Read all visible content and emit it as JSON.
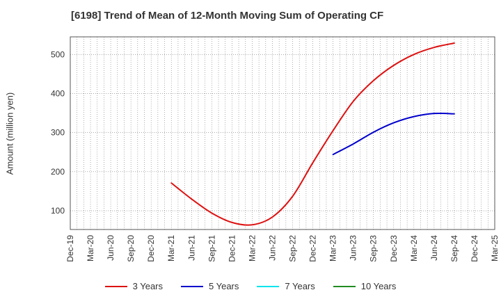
{
  "chart_data": {
    "type": "line",
    "title": "[6198]  Trend of Mean of 12-Month Moving Sum of Operating CF",
    "xlabel": "",
    "ylabel": "Amount (million yen)",
    "ylim": [
      52,
      545
    ],
    "yticks": [
      100,
      200,
      300,
      400,
      500
    ],
    "categories": [
      "Dec-19",
      "Mar-20",
      "Jun-20",
      "Sep-20",
      "Dec-20",
      "Mar-21",
      "Jun-21",
      "Sep-21",
      "Dec-21",
      "Mar-22",
      "Jun-22",
      "Sep-22",
      "Dec-22",
      "Mar-23",
      "Jun-23",
      "Sep-23",
      "Dec-23",
      "Mar-24",
      "Jun-24",
      "Sep-24",
      "Dec-24",
      "Mar-25"
    ],
    "grid": true,
    "legend_position": "bottom",
    "series": [
      {
        "name": "3 Years",
        "color": "#dd1111",
        "points": [
          {
            "x": "Mar-21",
            "y": 171
          },
          {
            "x": "Jun-21",
            "y": 130
          },
          {
            "x": "Sep-21",
            "y": 94
          },
          {
            "x": "Dec-21",
            "y": 70
          },
          {
            "x": "Mar-22",
            "y": 64
          },
          {
            "x": "Jun-22",
            "y": 84
          },
          {
            "x": "Sep-22",
            "y": 137
          },
          {
            "x": "Dec-22",
            "y": 223
          },
          {
            "x": "Mar-23",
            "y": 305
          },
          {
            "x": "Jun-23",
            "y": 380
          },
          {
            "x": "Sep-23",
            "y": 433
          },
          {
            "x": "Dec-23",
            "y": 472
          },
          {
            "x": "Mar-24",
            "y": 500
          },
          {
            "x": "Jun-24",
            "y": 518
          },
          {
            "x": "Sep-24",
            "y": 529
          }
        ]
      },
      {
        "name": "5 Years",
        "color": "#0000cc",
        "points": [
          {
            "x": "Mar-23",
            "y": 244
          },
          {
            "x": "Jun-23",
            "y": 271
          },
          {
            "x": "Sep-23",
            "y": 301
          },
          {
            "x": "Dec-23",
            "y": 325
          },
          {
            "x": "Mar-24",
            "y": 341
          },
          {
            "x": "Jun-24",
            "y": 349
          },
          {
            "x": "Sep-24",
            "y": 348
          }
        ]
      },
      {
        "name": "7 Years",
        "color": "#00e5ee",
        "points": []
      },
      {
        "name": "10 Years",
        "color": "#228b22",
        "points": []
      }
    ]
  }
}
